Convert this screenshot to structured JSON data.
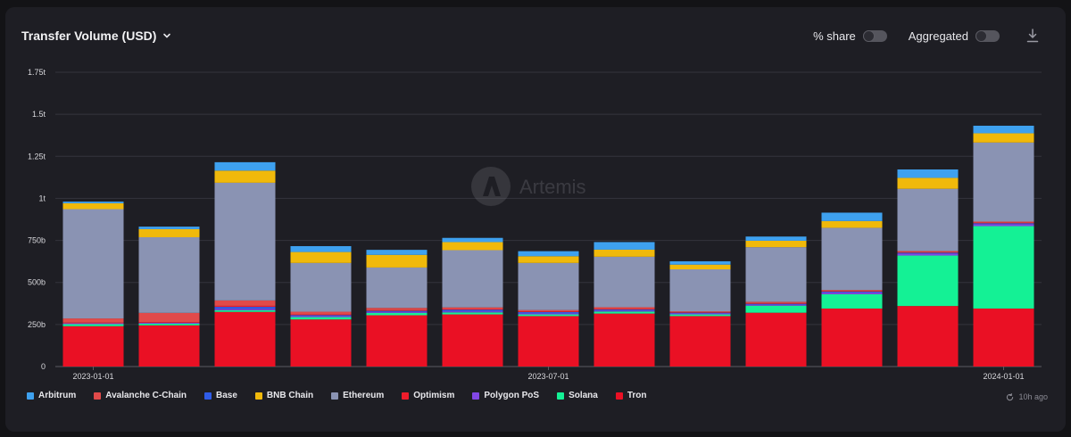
{
  "header": {
    "title": "Transfer Volume (USD)"
  },
  "controls": {
    "share_label": "% share",
    "aggregated_label": "Aggregated"
  },
  "watermark": "Artemis",
  "updated": "10h ago",
  "colors": {
    "Arbitrum": "#3ea1ef",
    "Avalanche C-Chain": "#e14a4a",
    "Base": "#2f5ce8",
    "BNB Chain": "#f0b90b",
    "Ethereum": "#8a93b3",
    "Optimism": "#ee1c2b",
    "Polygon PoS": "#8247e5",
    "Solana": "#14f195",
    "Tron": "#ea1024"
  },
  "chart_data": {
    "type": "bar",
    "stacked": true,
    "categories": [
      "2023-01-01",
      "2023-02-01",
      "2023-03-01",
      "2023-04-01",
      "2023-05-01",
      "2023-06-01",
      "2023-07-01",
      "2023-08-01",
      "2023-09-01",
      "2023-10-01",
      "2023-11-01",
      "2023-12-01",
      "2024-01-01"
    ],
    "x_tick_labels": [
      "2023-01-01",
      "2023-07-01",
      "2024-01-01"
    ],
    "y_ticks": [
      "0",
      "250b",
      "500b",
      "750b",
      "1t",
      "1.25t",
      "1.5t",
      "1.75t"
    ],
    "y_tick_values": [
      0,
      250,
      500,
      750,
      1000,
      1250,
      1500,
      1750
    ],
    "ylim": [
      0,
      1750
    ],
    "y_unit": "billions USD",
    "grid": true,
    "legend_position": "bottom",
    "series": [
      {
        "name": "Tron",
        "values": [
          240,
          245,
          325,
          280,
          305,
          310,
          300,
          315,
          300,
          320,
          345,
          360,
          345
        ]
      },
      {
        "name": "Solana",
        "values": [
          12,
          10,
          10,
          14,
          14,
          12,
          10,
          12,
          10,
          42,
          85,
          300,
          490
        ]
      },
      {
        "name": "Polygon PoS",
        "values": [
          5,
          5,
          8,
          6,
          6,
          6,
          6,
          6,
          6,
          6,
          10,
          12,
          12
        ]
      },
      {
        "name": "Base",
        "values": [
          0,
          0,
          12,
          6,
          6,
          10,
          8,
          6,
          4,
          5,
          5,
          5,
          5
        ]
      },
      {
        "name": "Optimism",
        "values": [
          4,
          4,
          6,
          4,
          4,
          4,
          4,
          4,
          3,
          4,
          4,
          4,
          4
        ]
      },
      {
        "name": "Avalanche C-Chain",
        "values": [
          25,
          55,
          32,
          16,
          14,
          10,
          8,
          10,
          5,
          8,
          6,
          6,
          6
        ]
      },
      {
        "name": "Ethereum",
        "values": [
          650,
          450,
          700,
          290,
          240,
          340,
          280,
          300,
          250,
          325,
          370,
          370,
          470
        ]
      },
      {
        "name": "BNB Chain",
        "values": [
          35,
          48,
          72,
          65,
          75,
          48,
          40,
          42,
          28,
          38,
          40,
          65,
          55
        ]
      },
      {
        "name": "Arbitrum",
        "values": [
          10,
          15,
          50,
          35,
          30,
          25,
          30,
          45,
          20,
          25,
          50,
          50,
          45
        ]
      }
    ]
  },
  "legend": [
    "Arbitrum",
    "Avalanche C-Chain",
    "Base",
    "BNB Chain",
    "Ethereum",
    "Optimism",
    "Polygon PoS",
    "Solana",
    "Tron"
  ]
}
